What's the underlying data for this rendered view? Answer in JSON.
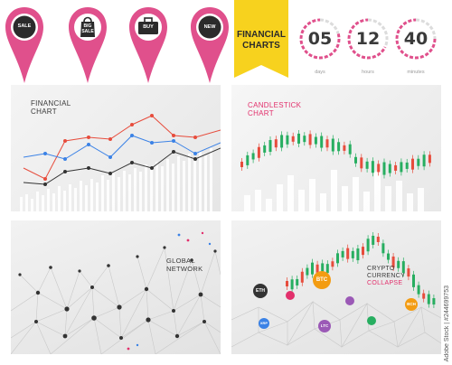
{
  "pins": [
    {
      "label": "SALE",
      "icon": "sale-circle-icon"
    },
    {
      "label_line1": "BIG",
      "label_line2": "SALE",
      "icon": "shopping-bag-icon"
    },
    {
      "label": "BUY",
      "icon": "briefcase-buy-icon"
    },
    {
      "label": "NEW",
      "icon": "new-circle-icon"
    }
  ],
  "banner": {
    "line1": "FINANCIAL",
    "line2": "CHARTS",
    "color": "#f7d21e"
  },
  "timers": [
    {
      "value": "05",
      "unit": "days"
    },
    {
      "value": "12",
      "unit": "hours"
    },
    {
      "value": "40",
      "unit": "minutes"
    }
  ],
  "panels": {
    "financial": {
      "line1": "FINANCIAL",
      "line2": "CHART"
    },
    "candlestick": {
      "line1": "CANDLESTICK",
      "line2": "CHART"
    },
    "network": {
      "line1": "GLOBAL",
      "line2": "NETWORK"
    },
    "crypto": {
      "line1": "CRYPTO",
      "line2": "CURRENCY",
      "line3": "COLLAPSE"
    }
  },
  "crypto_coins": [
    "ETH",
    "BTC",
    "XRP",
    "LTC",
    "BCH"
  ],
  "colors": {
    "pin": "#e0508c",
    "accent_pink": "#e2306c",
    "accent_red": "#e74c3c",
    "accent_blue": "#3b82e6",
    "candle_green": "#27ae60",
    "candle_red": "#e74c3c",
    "coin_orange": "#f39c12",
    "coin_purple": "#9b59b6",
    "coin_dark": "#333333"
  },
  "watermark": "Adobe Stock | #244699753"
}
